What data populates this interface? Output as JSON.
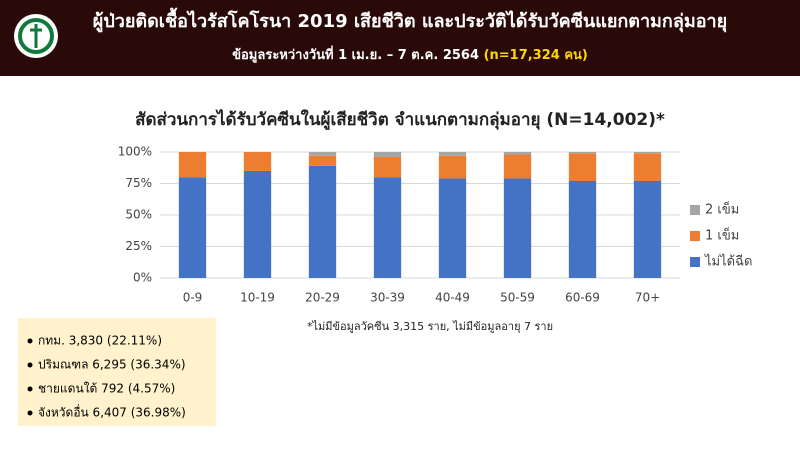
{
  "header": {
    "title": "ผู้ป่วยติดเชื้อไวรัสโคโรนา 2019 เสียชีวิต และประวัติได้รับวัคซีนแยกตามกลุ่มอายุ",
    "subtitle": "ข้อมูลระหว่างวันที่ 1 เม.ย. – 7 ต.ค. 2564",
    "subtitle_highlight": "(n=17,324 คน)"
  },
  "chart_data": {
    "type": "stacked_bar",
    "title": "สัดส่วนการได้รับวัคซีนในผู้เสียชีวิต จำแนกตามกลุ่มอายุ (N=14,002)*",
    "categories": [
      "0-9",
      "10-19",
      "20-29",
      "30-39",
      "40-49",
      "50-59",
      "60-69",
      "70+"
    ],
    "series": [
      {
        "name": "ไม่ได้ฉีด",
        "color": "#4472c4",
        "values": [
          80,
          85,
          89,
          80,
          79,
          79,
          77,
          77
        ]
      },
      {
        "name": "1 เข็ม",
        "color": "#ed7d31",
        "values": [
          20,
          15,
          8,
          16,
          18,
          19,
          22,
          22
        ]
      },
      {
        "name": "2 เข็ม",
        "color": "#a5a5a5",
        "values": [
          0,
          0,
          3,
          4,
          3,
          2,
          1,
          1
        ]
      }
    ],
    "ylim": [
      0,
      100
    ],
    "yticks": [
      {
        "value": 0,
        "label": "0%"
      },
      {
        "value": 25,
        "label": "25%"
      },
      {
        "value": 50,
        "label": "50%"
      },
      {
        "value": 75,
        "label": "75%"
      },
      {
        "value": 100,
        "label": "100%"
      }
    ],
    "grid": true,
    "legend": "right",
    "footnote": "*ไม่มีข้อมูลวัคซีน 3,315 ราย, ไม่มีข้อมูลอายุ 7 ราย"
  },
  "notes": [
    "กทม. 3,830 (22.11%)",
    "ปริมณฑล 6,295 (36.34%)",
    "ชายแดนใต้ 792 (4.57%)",
    "จังหวัดอื่น 6,407 (36.98%)"
  ]
}
